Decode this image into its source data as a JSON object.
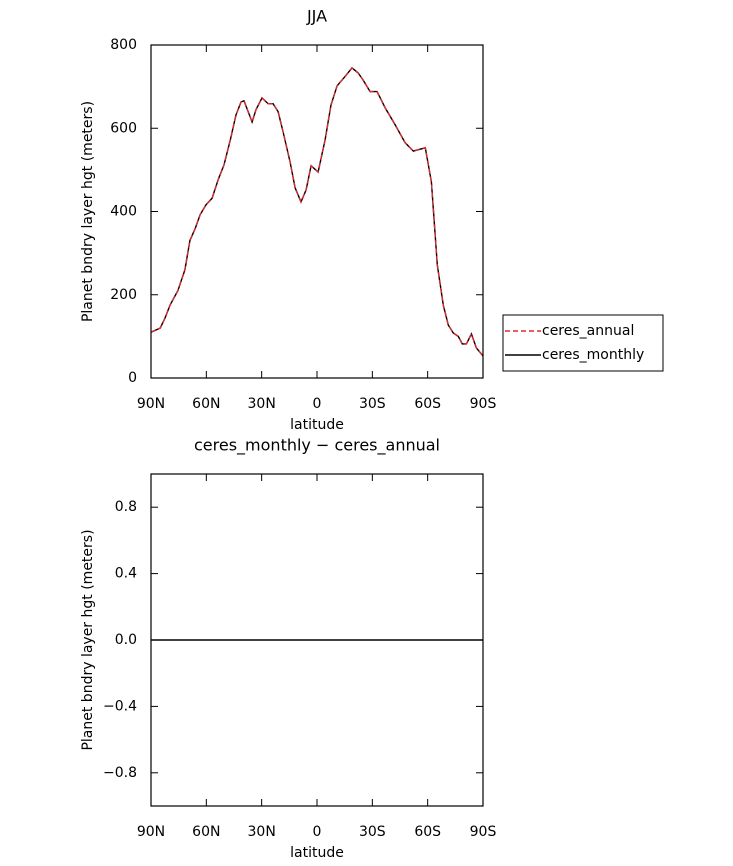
{
  "chart_data": [
    {
      "type": "line",
      "title": "JJA",
      "xlabel": "latitude",
      "ylabel": "Planet bndry layer hgt (meters)",
      "x": [
        90,
        85,
        82.4,
        79.7,
        75.4,
        71.6,
        68.9,
        66,
        63.4,
        60.2,
        56.9,
        53.6,
        50.4,
        47,
        43.9,
        41.2,
        39.6,
        35.2,
        33.1,
        29.8,
        26.5,
        23.8,
        21.1,
        18.4,
        14.6,
        11.9,
        8.7,
        5.9,
        3.2,
        -0.6,
        -4.4,
        -7.6,
        -10.9,
        -15.2,
        -19,
        -22.3,
        -25,
        -28.8,
        -32.6,
        -37,
        -42.4,
        -47.8,
        -52.2,
        -58.7,
        -62,
        -65.2,
        -68.5,
        -71.2,
        -73.9,
        -76.6,
        -78.8,
        -81,
        -83.7,
        -86.4,
        -90
      ],
      "series": [
        {
          "name": "ceres_annual",
          "color": "#e0282e",
          "dash": true,
          "values": [
            110,
            120,
            144,
            175,
            210,
            260,
            330,
            360,
            392,
            416,
            432,
            476,
            512,
            572,
            632,
            663,
            666,
            615,
            644,
            673,
            659,
            659,
            640,
            591,
            519,
            457,
            423,
            452,
            510,
            495,
            572,
            656,
            702,
            724,
            745,
            733,
            716,
            688,
            688,
            649,
            608,
            565,
            545,
            553,
            471,
            272,
            175,
            127,
            108,
            100,
            82,
            82,
            106,
            72,
            53
          ]
        },
        {
          "name": "ceres_monthly",
          "color": "#000000",
          "dash": false,
          "values": [
            110,
            120,
            144,
            175,
            210,
            260,
            330,
            360,
            392,
            416,
            432,
            476,
            512,
            572,
            632,
            663,
            666,
            615,
            644,
            673,
            659,
            659,
            640,
            591,
            519,
            457,
            423,
            452,
            510,
            495,
            572,
            656,
            702,
            724,
            745,
            733,
            716,
            688,
            688,
            649,
            608,
            565,
            545,
            553,
            471,
            272,
            175,
            127,
            108,
            100,
            82,
            82,
            106,
            72,
            53
          ]
        }
      ],
      "xlim": [
        90,
        -90
      ],
      "xticks": [
        {
          "value": 90,
          "label": "90N"
        },
        {
          "value": 60,
          "label": "60N"
        },
        {
          "value": 30,
          "label": "30N"
        },
        0,
        {
          "value": -30,
          "label": "30S"
        },
        {
          "value": -60,
          "label": "60S"
        },
        {
          "value": -90,
          "label": "90S"
        }
      ],
      "ylim": [
        0,
        800
      ],
      "yticks": [
        0,
        200,
        400,
        600,
        800
      ],
      "legend": "right"
    },
    {
      "type": "line",
      "title": "ceres_monthly − ceres_annual",
      "xlabel": "latitude",
      "ylabel": "Planet bndry layer hgt (meters)",
      "x": [
        90,
        -90
      ],
      "values": [
        0,
        0
      ],
      "color": "#000000",
      "xlim": [
        90,
        -90
      ],
      "xticks": [
        {
          "value": 90,
          "label": "90N"
        },
        {
          "value": 60,
          "label": "60N"
        },
        {
          "value": 30,
          "label": "30N"
        },
        0,
        {
          "value": -30,
          "label": "30S"
        },
        {
          "value": -60,
          "label": "60S"
        },
        {
          "value": -90,
          "label": "90S"
        }
      ],
      "ylim": [
        -1,
        1
      ],
      "yticks": [
        {
          "value": -0.8,
          "label": "−0.8"
        },
        {
          "value": -0.4,
          "label": "−0.4"
        },
        {
          "value": 0,
          "label": "0.0"
        },
        0.4,
        0.8
      ]
    }
  ]
}
